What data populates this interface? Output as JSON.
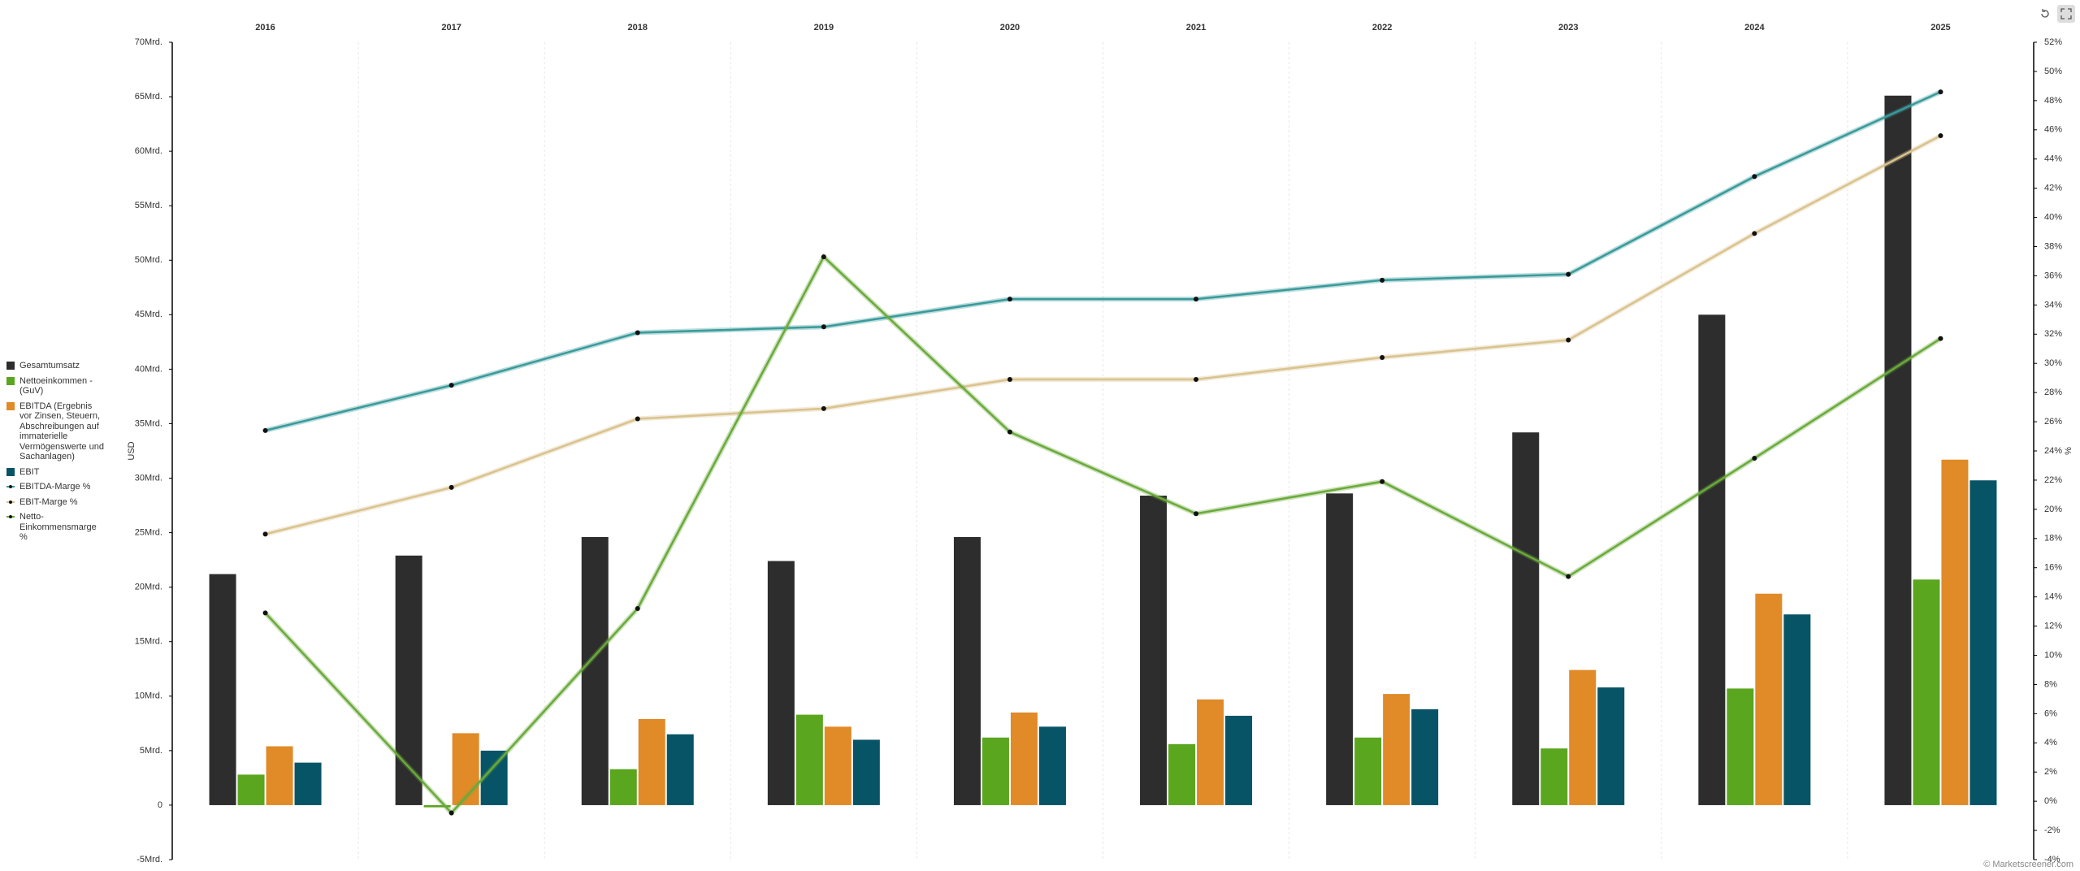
{
  "chart_data": {
    "type": "bar",
    "categories": [
      "2016",
      "2017",
      "2018",
      "2019",
      "2020",
      "2021",
      "2022",
      "2023",
      "2024",
      "2025"
    ],
    "series": [
      {
        "name": "Gesamtumsatz",
        "type": "bar",
        "color": "#2d2d2d",
        "values": [
          21.2,
          22.9,
          24.6,
          22.4,
          24.6,
          28.4,
          28.6,
          34.2,
          45.0,
          65.1
        ]
      },
      {
        "name": "Nettoeinkommen - (GuV)",
        "type": "bar",
        "color": "#5aa61e",
        "values": [
          2.8,
          -0.2,
          3.3,
          8.3,
          6.2,
          5.6,
          6.2,
          5.2,
          10.7,
          20.7
        ]
      },
      {
        "name": "EBITDA (Ergebnis vor Zinsen, Steuern, Abschreibungen auf immaterielle Vermögenswerte und Sachanlagen)",
        "type": "bar",
        "color": "#e08a28",
        "values": [
          5.4,
          6.6,
          7.9,
          7.2,
          8.5,
          9.7,
          10.2,
          12.4,
          19.4,
          31.7
        ]
      },
      {
        "name": "EBIT",
        "type": "bar",
        "color": "#075466",
        "values": [
          3.9,
          5.0,
          6.5,
          6.0,
          7.2,
          8.2,
          8.8,
          10.8,
          17.5,
          29.8
        ]
      },
      {
        "name": "EBITDA-Marge %",
        "type": "line",
        "axis": "y2",
        "color": "#3a9a9a",
        "values": [
          25.4,
          28.5,
          32.1,
          32.5,
          34.4,
          34.4,
          35.7,
          36.1,
          42.8,
          48.6
        ]
      },
      {
        "name": "EBIT-Marge %",
        "type": "line",
        "axis": "y2",
        "color": "#d9c38e",
        "values": [
          18.3,
          21.5,
          26.2,
          26.9,
          28.9,
          28.9,
          30.4,
          31.6,
          38.9,
          45.6
        ]
      },
      {
        "name": "Netto-Einkommensmarge %",
        "type": "line",
        "axis": "y2",
        "color": "#6aaa3a",
        "values": [
          12.9,
          -0.8,
          13.2,
          37.3,
          25.3,
          19.7,
          21.9,
          15.4,
          23.5,
          31.7
        ]
      }
    ],
    "ylabel": "USD",
    "y2label": "%",
    "ylim": [
      -5,
      70
    ],
    "yticks": [
      {
        "value": -5,
        "label": "-5Mrd."
      },
      0,
      {
        "value": 5,
        "label": "5Mrd."
      },
      {
        "value": 10,
        "label": "10Mrd."
      },
      {
        "value": 15,
        "label": "15Mrd."
      },
      {
        "value": 20,
        "label": "20Mrd."
      },
      {
        "value": 25,
        "label": "25Mrd."
      },
      {
        "value": 30,
        "label": "30Mrd."
      },
      {
        "value": 35,
        "label": "35Mrd."
      },
      {
        "value": 40,
        "label": "40Mrd."
      },
      {
        "value": 45,
        "label": "45Mrd."
      },
      {
        "value": 50,
        "label": "50Mrd."
      },
      {
        "value": 55,
        "label": "55Mrd."
      },
      {
        "value": 60,
        "label": "60Mrd."
      },
      {
        "value": 65,
        "label": "65Mrd."
      },
      {
        "value": 70,
        "label": "70Mrd."
      }
    ],
    "y2lim": [
      -4,
      52
    ],
    "y2ticks": [
      {
        "value": -4,
        "label": "-4%"
      },
      {
        "value": -2,
        "label": "-2%"
      },
      {
        "value": 0,
        "label": "0%"
      },
      {
        "value": 2,
        "label": "2%"
      },
      {
        "value": 4,
        "label": "4%"
      },
      {
        "value": 6,
        "label": "6%"
      },
      {
        "value": 8,
        "label": "8%"
      },
      {
        "value": 10,
        "label": "10%"
      },
      {
        "value": 12,
        "label": "12%"
      },
      {
        "value": 14,
        "label": "14%"
      },
      {
        "value": 16,
        "label": "16%"
      },
      {
        "value": 18,
        "label": "18%"
      },
      {
        "value": 20,
        "label": "20%"
      },
      {
        "value": 22,
        "label": "22%"
      },
      {
        "value": 24,
        "label": "24%"
      },
      {
        "value": 26,
        "label": "26%"
      },
      {
        "value": 28,
        "label": "28%"
      },
      {
        "value": 30,
        "label": "30%"
      },
      {
        "value": 32,
        "label": "32%"
      },
      {
        "value": 34,
        "label": "34%"
      },
      {
        "value": 36,
        "label": "36%"
      },
      {
        "value": 38,
        "label": "38%"
      },
      {
        "value": 40,
        "label": "40%"
      },
      {
        "value": 42,
        "label": "42%"
      },
      {
        "value": 44,
        "label": "44%"
      },
      {
        "value": 46,
        "label": "46%"
      },
      {
        "value": 48,
        "label": "48%"
      },
      {
        "value": 50,
        "label": "50%"
      },
      {
        "value": 52,
        "label": "52%"
      }
    ],
    "grid": true,
    "legend": "left",
    "credit": "© Marketscreener.com"
  }
}
